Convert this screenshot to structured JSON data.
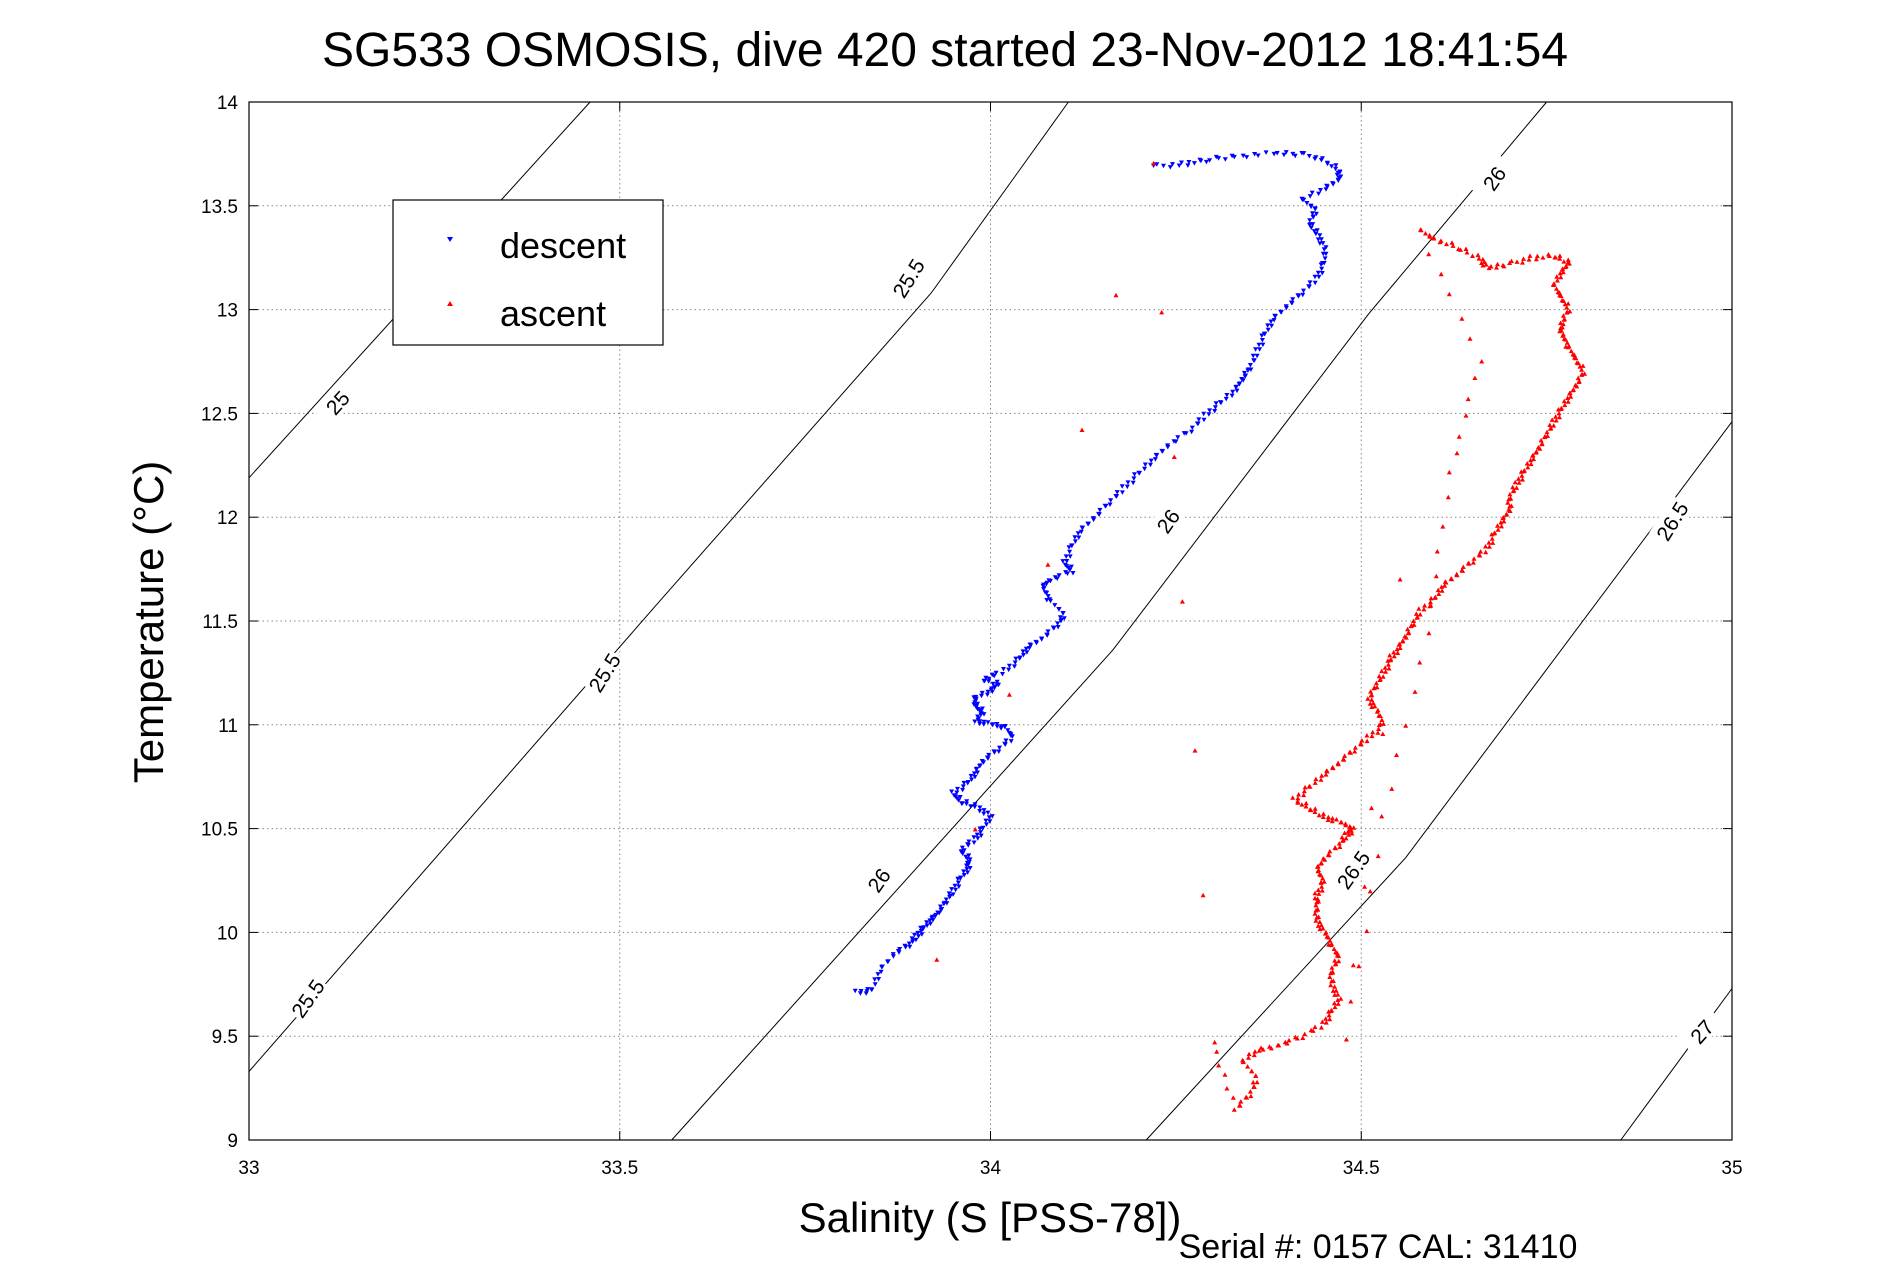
{
  "chart_data": {
    "type": "scatter",
    "title": "SG533 OSMOSIS, dive 420 started 23-Nov-2012 18:41:54",
    "xlabel": "Salinity (S [PSS-78])",
    "ylabel": "Temperature (°C)",
    "xlim": [
      33,
      35
    ],
    "ylim": [
      9,
      14
    ],
    "grid": true,
    "legend_position": "top-left",
    "x_ticks": [
      "33",
      "33.5",
      "34",
      "34.5",
      "35"
    ],
    "y_ticks": [
      "9",
      "9.5",
      "10",
      "10.5",
      "11",
      "11.5",
      "12",
      "12.5",
      "13",
      "13.5",
      "14"
    ],
    "footer": "Serial #: 0157  CAL: 31410",
    "density_contours": [
      {
        "label": "25",
        "points": [
          [
            33.0,
            12.19
          ],
          [
            33.46,
            14.0
          ]
        ]
      },
      {
        "label": "25.5",
        "points": [
          [
            33.0,
            9.33
          ],
          [
            33.555,
            11.6
          ],
          [
            33.92,
            13.08
          ],
          [
            34.105,
            14.0
          ]
        ]
      },
      {
        "label": "26",
        "points": [
          [
            33.57,
            9.0
          ],
          [
            34.165,
            11.36
          ],
          [
            34.51,
            12.98
          ],
          [
            34.75,
            14.0
          ]
        ]
      },
      {
        "label": "26.5",
        "points": [
          [
            34.21,
            9.0
          ],
          [
            34.56,
            10.36
          ],
          [
            35.0,
            12.46
          ]
        ]
      },
      {
        "label": "27",
        "points": [
          [
            34.85,
            9.0
          ],
          [
            35.0,
            9.73
          ]
        ]
      }
    ],
    "contour_labels": [
      {
        "text": "25",
        "at": [
          33.12,
          12.55
        ],
        "angle": -48
      },
      {
        "text": "25.5",
        "at": [
          33.08,
          9.68
        ],
        "angle": -55
      },
      {
        "text": "25.5",
        "at": [
          33.48,
          11.25
        ],
        "angle": -58
      },
      {
        "text": "25.5",
        "at": [
          33.89,
          13.15
        ],
        "angle": -58
      },
      {
        "text": "26",
        "at": [
          33.85,
          10.25
        ],
        "angle": -55
      },
      {
        "text": "26",
        "at": [
          34.24,
          11.98
        ],
        "angle": -55
      },
      {
        "text": "26",
        "at": [
          34.68,
          13.63
        ],
        "angle": -55
      },
      {
        "text": "26.5",
        "at": [
          34.49,
          10.3
        ],
        "angle": -55
      },
      {
        "text": "26.5",
        "at": [
          34.92,
          11.98
        ],
        "angle": -58
      },
      {
        "text": "27",
        "at": [
          34.96,
          9.52
        ],
        "angle": -48
      }
    ],
    "series": [
      {
        "name": "descent",
        "color": "#0000ff",
        "marker": "triangle-down",
        "points": [
          [
            33.82,
            9.71
          ],
          [
            33.84,
            9.72
          ],
          [
            33.85,
            9.81
          ],
          [
            33.87,
            9.9
          ],
          [
            33.89,
            9.94
          ],
          [
            33.9,
            9.98
          ],
          [
            33.91,
            10.02
          ],
          [
            33.92,
            10.06
          ],
          [
            33.93,
            10.1
          ],
          [
            33.94,
            10.15
          ],
          [
            33.95,
            10.2
          ],
          [
            33.96,
            10.26
          ],
          [
            33.97,
            10.31
          ],
          [
            33.97,
            10.36
          ],
          [
            33.96,
            10.4
          ],
          [
            33.98,
            10.45
          ],
          [
            33.99,
            10.5
          ],
          [
            34.0,
            10.56
          ],
          [
            33.98,
            10.61
          ],
          [
            33.96,
            10.63
          ],
          [
            33.95,
            10.67
          ],
          [
            33.97,
            10.72
          ],
          [
            33.98,
            10.77
          ],
          [
            33.99,
            10.83
          ],
          [
            34.01,
            10.88
          ],
          [
            34.03,
            10.94
          ],
          [
            34.02,
            10.99
          ],
          [
            34.0,
            11.0
          ],
          [
            33.98,
            11.02
          ],
          [
            33.99,
            11.06
          ],
          [
            33.98,
            11.09
          ],
          [
            33.98,
            11.13
          ],
          [
            34.0,
            11.16
          ],
          [
            34.01,
            11.2
          ],
          [
            33.99,
            11.22
          ],
          [
            34.02,
            11.26
          ],
          [
            34.04,
            11.32
          ],
          [
            34.05,
            11.37
          ],
          [
            34.07,
            11.42
          ],
          [
            34.09,
            11.48
          ],
          [
            34.1,
            11.53
          ],
          [
            34.08,
            11.6
          ],
          [
            34.07,
            11.66
          ],
          [
            34.08,
            11.7
          ],
          [
            34.11,
            11.74
          ],
          [
            34.1,
            11.78
          ],
          [
            34.11,
            11.86
          ],
          [
            34.12,
            11.93
          ],
          [
            34.14,
            12.0
          ],
          [
            34.16,
            12.07
          ],
          [
            34.18,
            12.14
          ],
          [
            34.2,
            12.21
          ],
          [
            34.22,
            12.28
          ],
          [
            34.24,
            12.35
          ],
          [
            34.27,
            12.42
          ],
          [
            34.29,
            12.49
          ],
          [
            34.31,
            12.55
          ],
          [
            34.33,
            12.61
          ],
          [
            34.34,
            12.67
          ],
          [
            34.35,
            12.72
          ],
          [
            34.36,
            12.8
          ],
          [
            34.37,
            12.88
          ],
          [
            34.38,
            12.95
          ],
          [
            34.4,
            13.02
          ],
          [
            34.42,
            13.08
          ],
          [
            34.44,
            13.15
          ],
          [
            34.45,
            13.22
          ],
          [
            34.45,
            13.3
          ],
          [
            34.44,
            13.37
          ],
          [
            34.43,
            13.42
          ],
          [
            34.44,
            13.48
          ],
          [
            34.42,
            13.53
          ],
          [
            34.45,
            13.58
          ],
          [
            34.47,
            13.63
          ],
          [
            34.47,
            13.67
          ],
          [
            34.45,
            13.72
          ],
          [
            34.42,
            13.75
          ],
          [
            34.38,
            13.75
          ],
          [
            34.33,
            13.74
          ],
          [
            34.29,
            13.72
          ],
          [
            34.26,
            13.7
          ],
          [
            34.22,
            13.69
          ]
        ]
      },
      {
        "name": "ascent",
        "color": "#ff0000",
        "marker": "triangle-up",
        "points": [
          [
            33.93,
            9.86
          ],
          [
            34.22,
            13.7
          ],
          [
            34.3,
            9.47
          ],
          [
            34.33,
            9.15
          ],
          [
            34.35,
            9.22
          ],
          [
            34.36,
            9.3
          ],
          [
            34.34,
            9.38
          ],
          [
            34.36,
            9.43
          ],
          [
            34.39,
            9.46
          ],
          [
            34.42,
            9.5
          ],
          [
            34.45,
            9.56
          ],
          [
            34.46,
            9.62
          ],
          [
            34.47,
            9.68
          ],
          [
            34.46,
            9.75
          ],
          [
            34.46,
            9.82
          ],
          [
            34.47,
            9.88
          ],
          [
            34.46,
            9.94
          ],
          [
            34.45,
            10.0
          ],
          [
            34.44,
            10.06
          ],
          [
            34.44,
            10.12
          ],
          [
            34.44,
            10.18
          ],
          [
            34.45,
            10.24
          ],
          [
            34.44,
            10.3
          ],
          [
            34.45,
            10.36
          ],
          [
            34.47,
            10.42
          ],
          [
            34.48,
            10.47
          ],
          [
            34.49,
            10.5
          ],
          [
            34.47,
            10.53
          ],
          [
            34.45,
            10.56
          ],
          [
            34.43,
            10.6
          ],
          [
            34.41,
            10.64
          ],
          [
            34.43,
            10.7
          ],
          [
            34.45,
            10.76
          ],
          [
            34.47,
            10.82
          ],
          [
            34.49,
            10.88
          ],
          [
            34.51,
            10.94
          ],
          [
            34.53,
            11.0
          ],
          [
            34.52,
            11.07
          ],
          [
            34.51,
            11.13
          ],
          [
            34.52,
            11.19
          ],
          [
            34.53,
            11.25
          ],
          [
            34.54,
            11.31
          ],
          [
            34.55,
            11.37
          ],
          [
            34.56,
            11.43
          ],
          [
            34.57,
            11.49
          ],
          [
            34.58,
            11.55
          ],
          [
            34.6,
            11.61
          ],
          [
            34.61,
            11.67
          ],
          [
            34.63,
            11.73
          ],
          [
            34.65,
            11.79
          ],
          [
            34.67,
            11.85
          ],
          [
            34.68,
            11.92
          ],
          [
            34.69,
            11.98
          ],
          [
            34.7,
            12.04
          ],
          [
            34.7,
            12.1
          ],
          [
            34.71,
            12.16
          ],
          [
            34.72,
            12.22
          ],
          [
            34.73,
            12.28
          ],
          [
            34.74,
            12.34
          ],
          [
            34.75,
            12.4
          ],
          [
            34.76,
            12.46
          ],
          [
            34.77,
            12.52
          ],
          [
            34.78,
            12.58
          ],
          [
            34.79,
            12.64
          ],
          [
            34.8,
            12.7
          ],
          [
            34.79,
            12.76
          ],
          [
            34.78,
            12.82
          ],
          [
            34.77,
            12.88
          ],
          [
            34.77,
            12.94
          ],
          [
            34.78,
            13.0
          ],
          [
            34.77,
            13.06
          ],
          [
            34.76,
            13.12
          ],
          [
            34.77,
            13.18
          ],
          [
            34.78,
            13.23
          ],
          [
            34.76,
            13.26
          ],
          [
            34.73,
            13.25
          ],
          [
            34.7,
            13.22
          ],
          [
            34.67,
            13.2
          ],
          [
            34.66,
            13.25
          ],
          [
            34.63,
            13.3
          ],
          [
            34.6,
            13.34
          ],
          [
            34.58,
            13.38
          ],
          [
            34.66,
            12.75
          ],
          [
            34.62,
            12.22
          ],
          [
            34.59,
            11.45
          ],
          [
            34.53,
            10.55
          ],
          [
            34.48,
            9.48
          ],
          [
            34.55,
            11.7
          ]
        ]
      }
    ]
  }
}
